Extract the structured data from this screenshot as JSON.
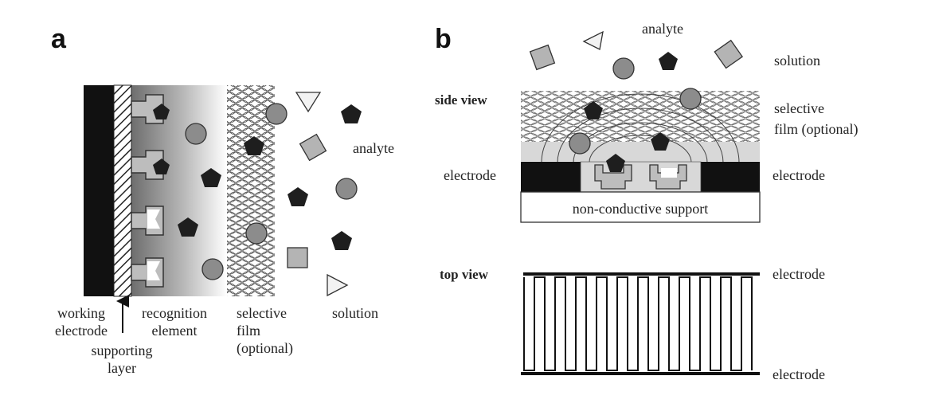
{
  "panel_a": {
    "letter": "a",
    "labels": {
      "working_electrode_line1": "working",
      "working_electrode_line2": "electrode",
      "supporting_layer_line1": "supporting",
      "supporting_layer_line2": "layer",
      "recognition_element_line1": "recognition",
      "recognition_element_line2": "element",
      "selective_film_line1": "selective",
      "selective_film_line2": "film",
      "selective_film_line3": "(optional)",
      "solution": "solution",
      "analyte": "analyte"
    }
  },
  "panel_b": {
    "letter": "b",
    "labels": {
      "analyte": "analyte",
      "solution": "solution",
      "side_view": "side view",
      "selective_film_line1": "selective",
      "selective_film_line2": "film (optional)",
      "electrode_left": "electrode",
      "electrode_right": "electrode",
      "support": "non-conductive support",
      "top_view": "top view",
      "electrode_top": "electrode",
      "electrode_bottom": "electrode"
    }
  },
  "colors": {
    "electrode": "#111111",
    "analyte_pentagon": "#1e1e1e",
    "circle": "#8c8c8c",
    "square": "#b4b4b4",
    "triangle": "#f2f2f2",
    "film_light": "#d8d8d8"
  }
}
